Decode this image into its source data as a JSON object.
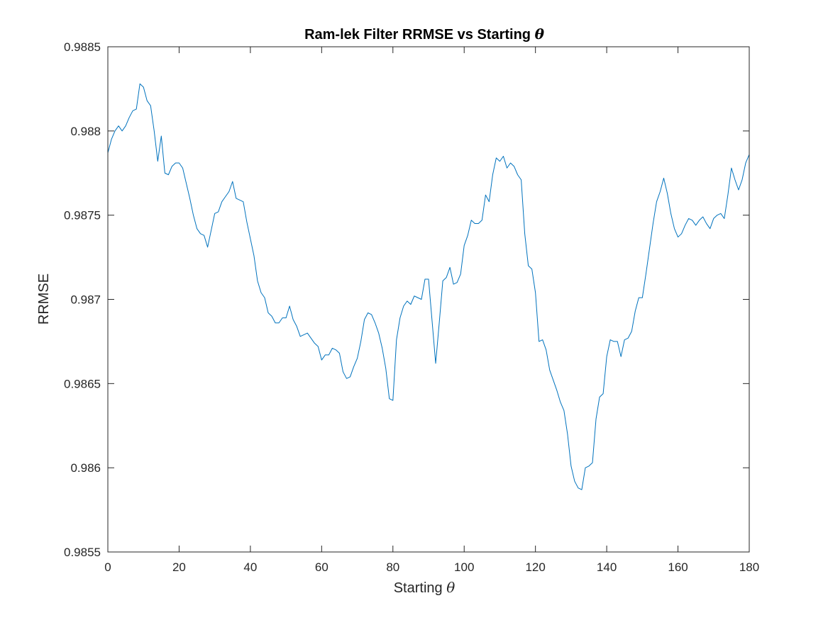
{
  "chart_data": {
    "type": "line",
    "title": "Ram-lek Filter RRMSE vs Starting",
    "title_symbol": "θ",
    "xlabel": "Starting",
    "xlabel_symbol": "θ",
    "ylabel": "RRMSE",
    "xlim": [
      0,
      180
    ],
    "ylim": [
      0.9855,
      0.9885
    ],
    "xticks": [
      0,
      20,
      40,
      60,
      80,
      100,
      120,
      140,
      160,
      180
    ],
    "xtick_labels": [
      "0",
      "20",
      "40",
      "60",
      "80",
      "100",
      "120",
      "140",
      "160",
      "180"
    ],
    "yticks": [
      0.9855,
      0.986,
      0.9865,
      0.987,
      0.9875,
      0.988,
      0.9885
    ],
    "ytick_labels": [
      "0.9855",
      "0.986",
      "0.9865",
      "0.987",
      "0.9875",
      "0.988",
      "0.9885"
    ],
    "grid": false,
    "line_color": "#0072BD",
    "series": [
      {
        "x": [
          0,
          1,
          2,
          3,
          4,
          5,
          6,
          7,
          8,
          9,
          10,
          11,
          12,
          13,
          14,
          15,
          16,
          17,
          18,
          19,
          20,
          21,
          22,
          23,
          24,
          25,
          26,
          27,
          28,
          29,
          30,
          31,
          32,
          33,
          34,
          35,
          36,
          37,
          38,
          39,
          40,
          41,
          42,
          43,
          44,
          45,
          46,
          47,
          48,
          49,
          50,
          51,
          52,
          53,
          54,
          55,
          56,
          57,
          58,
          59,
          60,
          61,
          62,
          63,
          64,
          65,
          66,
          67,
          68,
          69,
          70,
          71,
          72,
          73,
          74,
          75,
          76,
          77,
          78,
          79,
          80,
          81,
          82,
          83,
          84,
          85,
          86,
          87,
          88,
          89,
          90,
          91,
          92,
          93,
          94,
          95,
          96,
          97,
          98,
          99,
          100,
          101,
          102,
          103,
          104,
          105,
          106,
          107,
          108,
          109,
          110,
          111,
          112,
          113,
          114,
          115,
          116,
          117,
          118,
          119,
          120,
          121,
          122,
          123,
          124,
          125,
          126,
          127,
          128,
          129,
          130,
          131,
          132,
          133,
          134,
          135,
          136,
          137,
          138,
          139,
          140,
          141,
          142,
          143,
          144,
          145,
          146,
          147,
          148,
          149,
          150,
          151,
          152,
          153,
          154,
          155,
          156,
          157,
          158,
          159,
          160,
          161,
          162,
          163,
          164,
          165,
          166,
          167,
          168,
          169,
          170,
          171,
          172,
          173,
          174,
          175,
          176,
          177,
          178,
          179,
          180
        ],
        "y": [
          0.98787,
          0.98795,
          0.988,
          0.98803,
          0.988,
          0.98803,
          0.98808,
          0.98812,
          0.98813,
          0.98828,
          0.98826,
          0.98818,
          0.98815,
          0.988,
          0.98782,
          0.98797,
          0.98775,
          0.98774,
          0.98779,
          0.98781,
          0.98781,
          0.98778,
          0.98769,
          0.9876,
          0.9875,
          0.98742,
          0.98739,
          0.98738,
          0.98731,
          0.98741,
          0.98751,
          0.98752,
          0.98758,
          0.98761,
          0.98764,
          0.9877,
          0.9876,
          0.98759,
          0.98758,
          0.98746,
          0.98736,
          0.98726,
          0.98711,
          0.98704,
          0.98701,
          0.98692,
          0.9869,
          0.98686,
          0.98686,
          0.98689,
          0.98689,
          0.98696,
          0.98688,
          0.98684,
          0.98678,
          0.98679,
          0.9868,
          0.98677,
          0.98674,
          0.98672,
          0.98664,
          0.98667,
          0.98667,
          0.98671,
          0.9867,
          0.98668,
          0.98657,
          0.98653,
          0.98654,
          0.9866,
          0.98665,
          0.98675,
          0.98688,
          0.98692,
          0.98691,
          0.98686,
          0.9868,
          0.98671,
          0.98659,
          0.98641,
          0.9864,
          0.98676,
          0.98689,
          0.98696,
          0.98699,
          0.98697,
          0.98702,
          0.98701,
          0.987,
          0.98712,
          0.98712,
          0.98687,
          0.98662,
          0.98686,
          0.98711,
          0.98713,
          0.98719,
          0.98709,
          0.9871,
          0.98715,
          0.98732,
          0.98738,
          0.98747,
          0.98745,
          0.98745,
          0.98747,
          0.98762,
          0.98758,
          0.98774,
          0.98784,
          0.98782,
          0.98785,
          0.98778,
          0.98781,
          0.98779,
          0.98774,
          0.98771,
          0.98739,
          0.9872,
          0.98718,
          0.98704,
          0.98675,
          0.98676,
          0.9867,
          0.98658,
          0.98652,
          0.98646,
          0.98639,
          0.98634,
          0.9862,
          0.98601,
          0.98592,
          0.98588,
          0.98587,
          0.986,
          0.98601,
          0.98603,
          0.98629,
          0.98642,
          0.98644,
          0.98666,
          0.98676,
          0.98675,
          0.98675,
          0.98666,
          0.98676,
          0.98677,
          0.98681,
          0.98693,
          0.98701,
          0.98701,
          0.98715,
          0.9873,
          0.98745,
          0.98758,
          0.98764,
          0.98772,
          0.98763,
          0.98751,
          0.98742,
          0.98737,
          0.98739,
          0.98744,
          0.98748,
          0.98747,
          0.98744,
          0.98747,
          0.98749,
          0.98745,
          0.98742,
          0.98748,
          0.9875,
          0.98751,
          0.98748,
          0.98762,
          0.98778,
          0.98771,
          0.98765,
          0.98771,
          0.98781,
          0.98786
        ]
      }
    ]
  }
}
